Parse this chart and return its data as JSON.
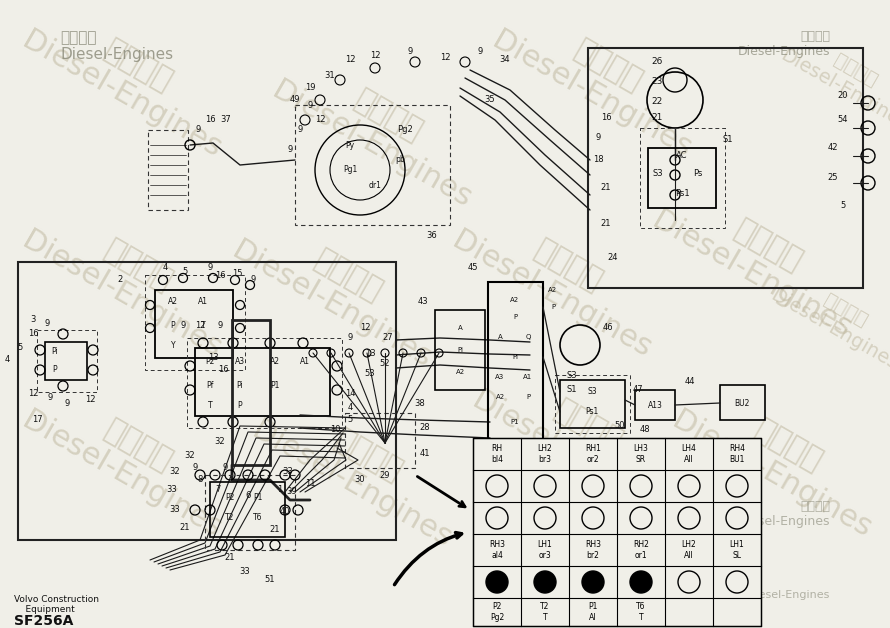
{
  "bg_color": "#f0efe8",
  "fig_width": 8.9,
  "fig_height": 6.28,
  "dpi": 100,
  "title_text": "SF256A",
  "subtitle_text": "Volvo Construction\n    Equipment",
  "line_color": "#1a1a1a",
  "col_headers_row1": [
    "RH\nbl4",
    "LH2\nbr3",
    "RH1\nor2",
    "LH3\nSR",
    "LH4\nAll",
    "RH4\nBU1"
  ],
  "col_headers_row2": [
    "RH3\nal4",
    "LH1\nor3",
    "RH3\nbr2",
    "RH2\nor1",
    "LH2\nAll",
    "LH1\nSL"
  ],
  "col_bottoms": [
    "P2\nPg2",
    "T2\nT",
    "P1\nAl",
    "T6\nT",
    "",
    ""
  ],
  "circles_row3_filled": [
    true,
    true,
    true,
    true,
    false,
    false
  ],
  "wm_color": "#c0b8a0",
  "wm_alpha": 0.55
}
